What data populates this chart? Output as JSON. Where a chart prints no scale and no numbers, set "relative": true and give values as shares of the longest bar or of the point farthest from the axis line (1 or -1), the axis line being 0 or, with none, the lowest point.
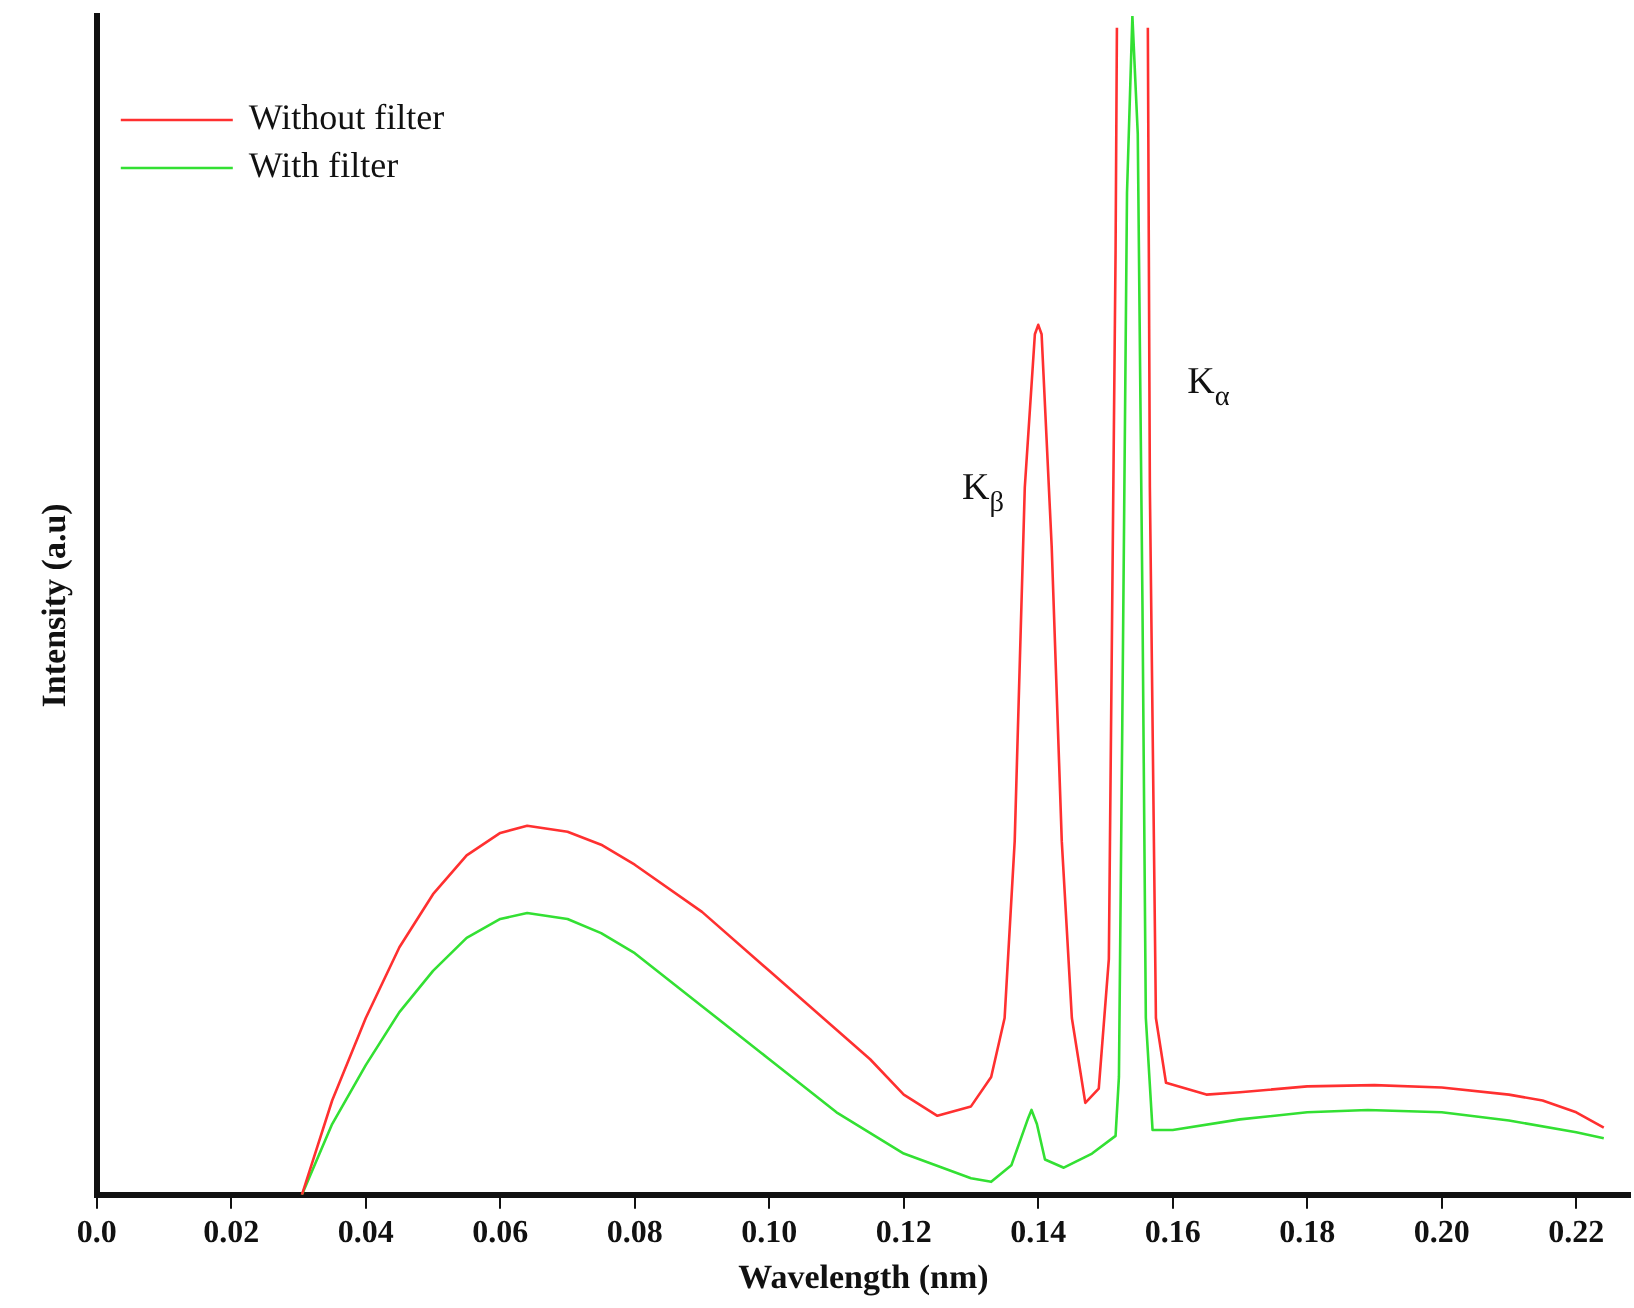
{
  "chart_data": {
    "type": "line",
    "xlabel": "Wavelength (nm)",
    "ylabel": "Intensity (a.u)",
    "relative": true,
    "legend": "top left",
    "grid": false,
    "marker": "none",
    "line_style": "solid",
    "xlim": [
      0,
      0.228
    ],
    "xticks": [
      {
        "value": 0,
        "label": "0.0"
      },
      0.02,
      0.04,
      0.06,
      0.08,
      {
        "value": 0.1,
        "label": "0.10"
      },
      0.12,
      0.14,
      0.16,
      0.18,
      {
        "value": 0.2,
        "label": "0.20"
      },
      0.22
    ],
    "annotations": [
      "K$_{β}$",
      "K$_{α}$"
    ],
    "series": [
      {
        "name": "Without filter",
        "color": "#ff3030",
        "x": [
          0.0305,
          0.035,
          0.04,
          0.045,
          0.05,
          0.055,
          0.06,
          0.064,
          0.07,
          0.075,
          0.08,
          0.09,
          0.1,
          0.11,
          0.115,
          0.12,
          0.125,
          0.13,
          0.133,
          0.135,
          0.1365,
          0.138,
          0.1395,
          0.14,
          0.1405,
          0.142,
          0.1435,
          0.145,
          0.147,
          0.149,
          0.1505,
          0.1515,
          0.1517,
          0.154,
          0.1563,
          0.1566,
          0.1575,
          0.159,
          0.165,
          0.17,
          0.18,
          0.19,
          0.2,
          0.21,
          0.215,
          0.22,
          0.2241
        ],
        "values": [
          0,
          0.08,
          0.15,
          0.21,
          0.255,
          0.288,
          0.307,
          0.313,
          0.308,
          0.297,
          0.28,
          0.24,
          0.19,
          0.14,
          0.115,
          0.085,
          0.067,
          0.075,
          0.1,
          0.15,
          0.3,
          0.6,
          0.73,
          0.738,
          0.73,
          0.55,
          0.3,
          0.15,
          0.078,
          0.09,
          0.2,
          0.8,
          0.99,
          null,
          0.99,
          0.6,
          0.15,
          0.095,
          0.085,
          0.087,
          0.092,
          0.093,
          0.091,
          0.085,
          0.08,
          0.07,
          0.057
        ]
      },
      {
        "name": "With filter",
        "color": "#33e033",
        "x": [
          0.0305,
          0.035,
          0.04,
          0.045,
          0.05,
          0.055,
          0.06,
          0.064,
          0.07,
          0.075,
          0.08,
          0.09,
          0.1,
          0.11,
          0.12,
          0.13,
          0.133,
          0.136,
          0.1385,
          0.139,
          0.1398,
          0.141,
          0.1438,
          0.148,
          0.1515,
          0.152,
          0.1525,
          0.1532,
          0.154,
          0.1548,
          0.1555,
          0.156,
          0.157,
          0.16,
          0.17,
          0.18,
          0.189,
          0.2,
          0.21,
          0.22,
          0.2241
        ],
        "values": [
          0,
          0.06,
          0.11,
          0.155,
          0.19,
          0.218,
          0.234,
          0.239,
          0.234,
          0.222,
          0.205,
          0.16,
          0.115,
          0.07,
          0.035,
          0.014,
          0.011,
          0.025,
          0.065,
          0.072,
          0.06,
          0.03,
          0.023,
          0.035,
          0.05,
          0.1,
          0.4,
          0.85,
          1,
          0.9,
          0.5,
          0.15,
          0.055,
          0.055,
          0.064,
          0.07,
          0.072,
          0.07,
          0.063,
          0.053,
          0.048
        ]
      }
    ]
  }
}
